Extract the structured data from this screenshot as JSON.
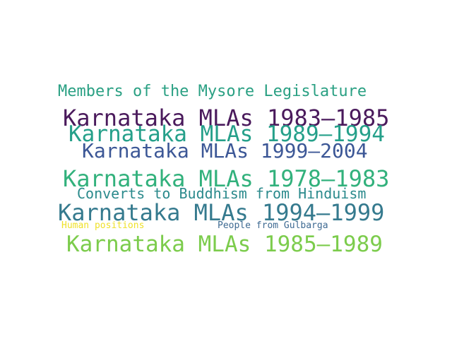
{
  "words": [
    {
      "text": "Members of the Mysore Legislature",
      "color": "#2aa083"
    },
    {
      "text": "Karnataka MLAs 1983–1985",
      "color": "#4a1a5c"
    },
    {
      "text": "Karnataka MLAs 1989–1994",
      "color": "#25a08a"
    },
    {
      "text": "Karnataka MLAs 1999–2004",
      "color": "#3c5796"
    },
    {
      "text": "Karnataka MLAs 1978–1983",
      "color": "#32b17c"
    },
    {
      "text": "Converts to Buddhism from Hinduism",
      "color": "#2b8a8c"
    },
    {
      "text": "Karnataka MLAs 1994–1999",
      "color": "#357a8e"
    },
    {
      "text": "Human positions",
      "color": "#efe12a"
    },
    {
      "text": "People from Gulbarga",
      "color": "#3e6a92"
    },
    {
      "text": "Karnataka MLAs 1985–1989",
      "color": "#7ccc4c"
    }
  ]
}
